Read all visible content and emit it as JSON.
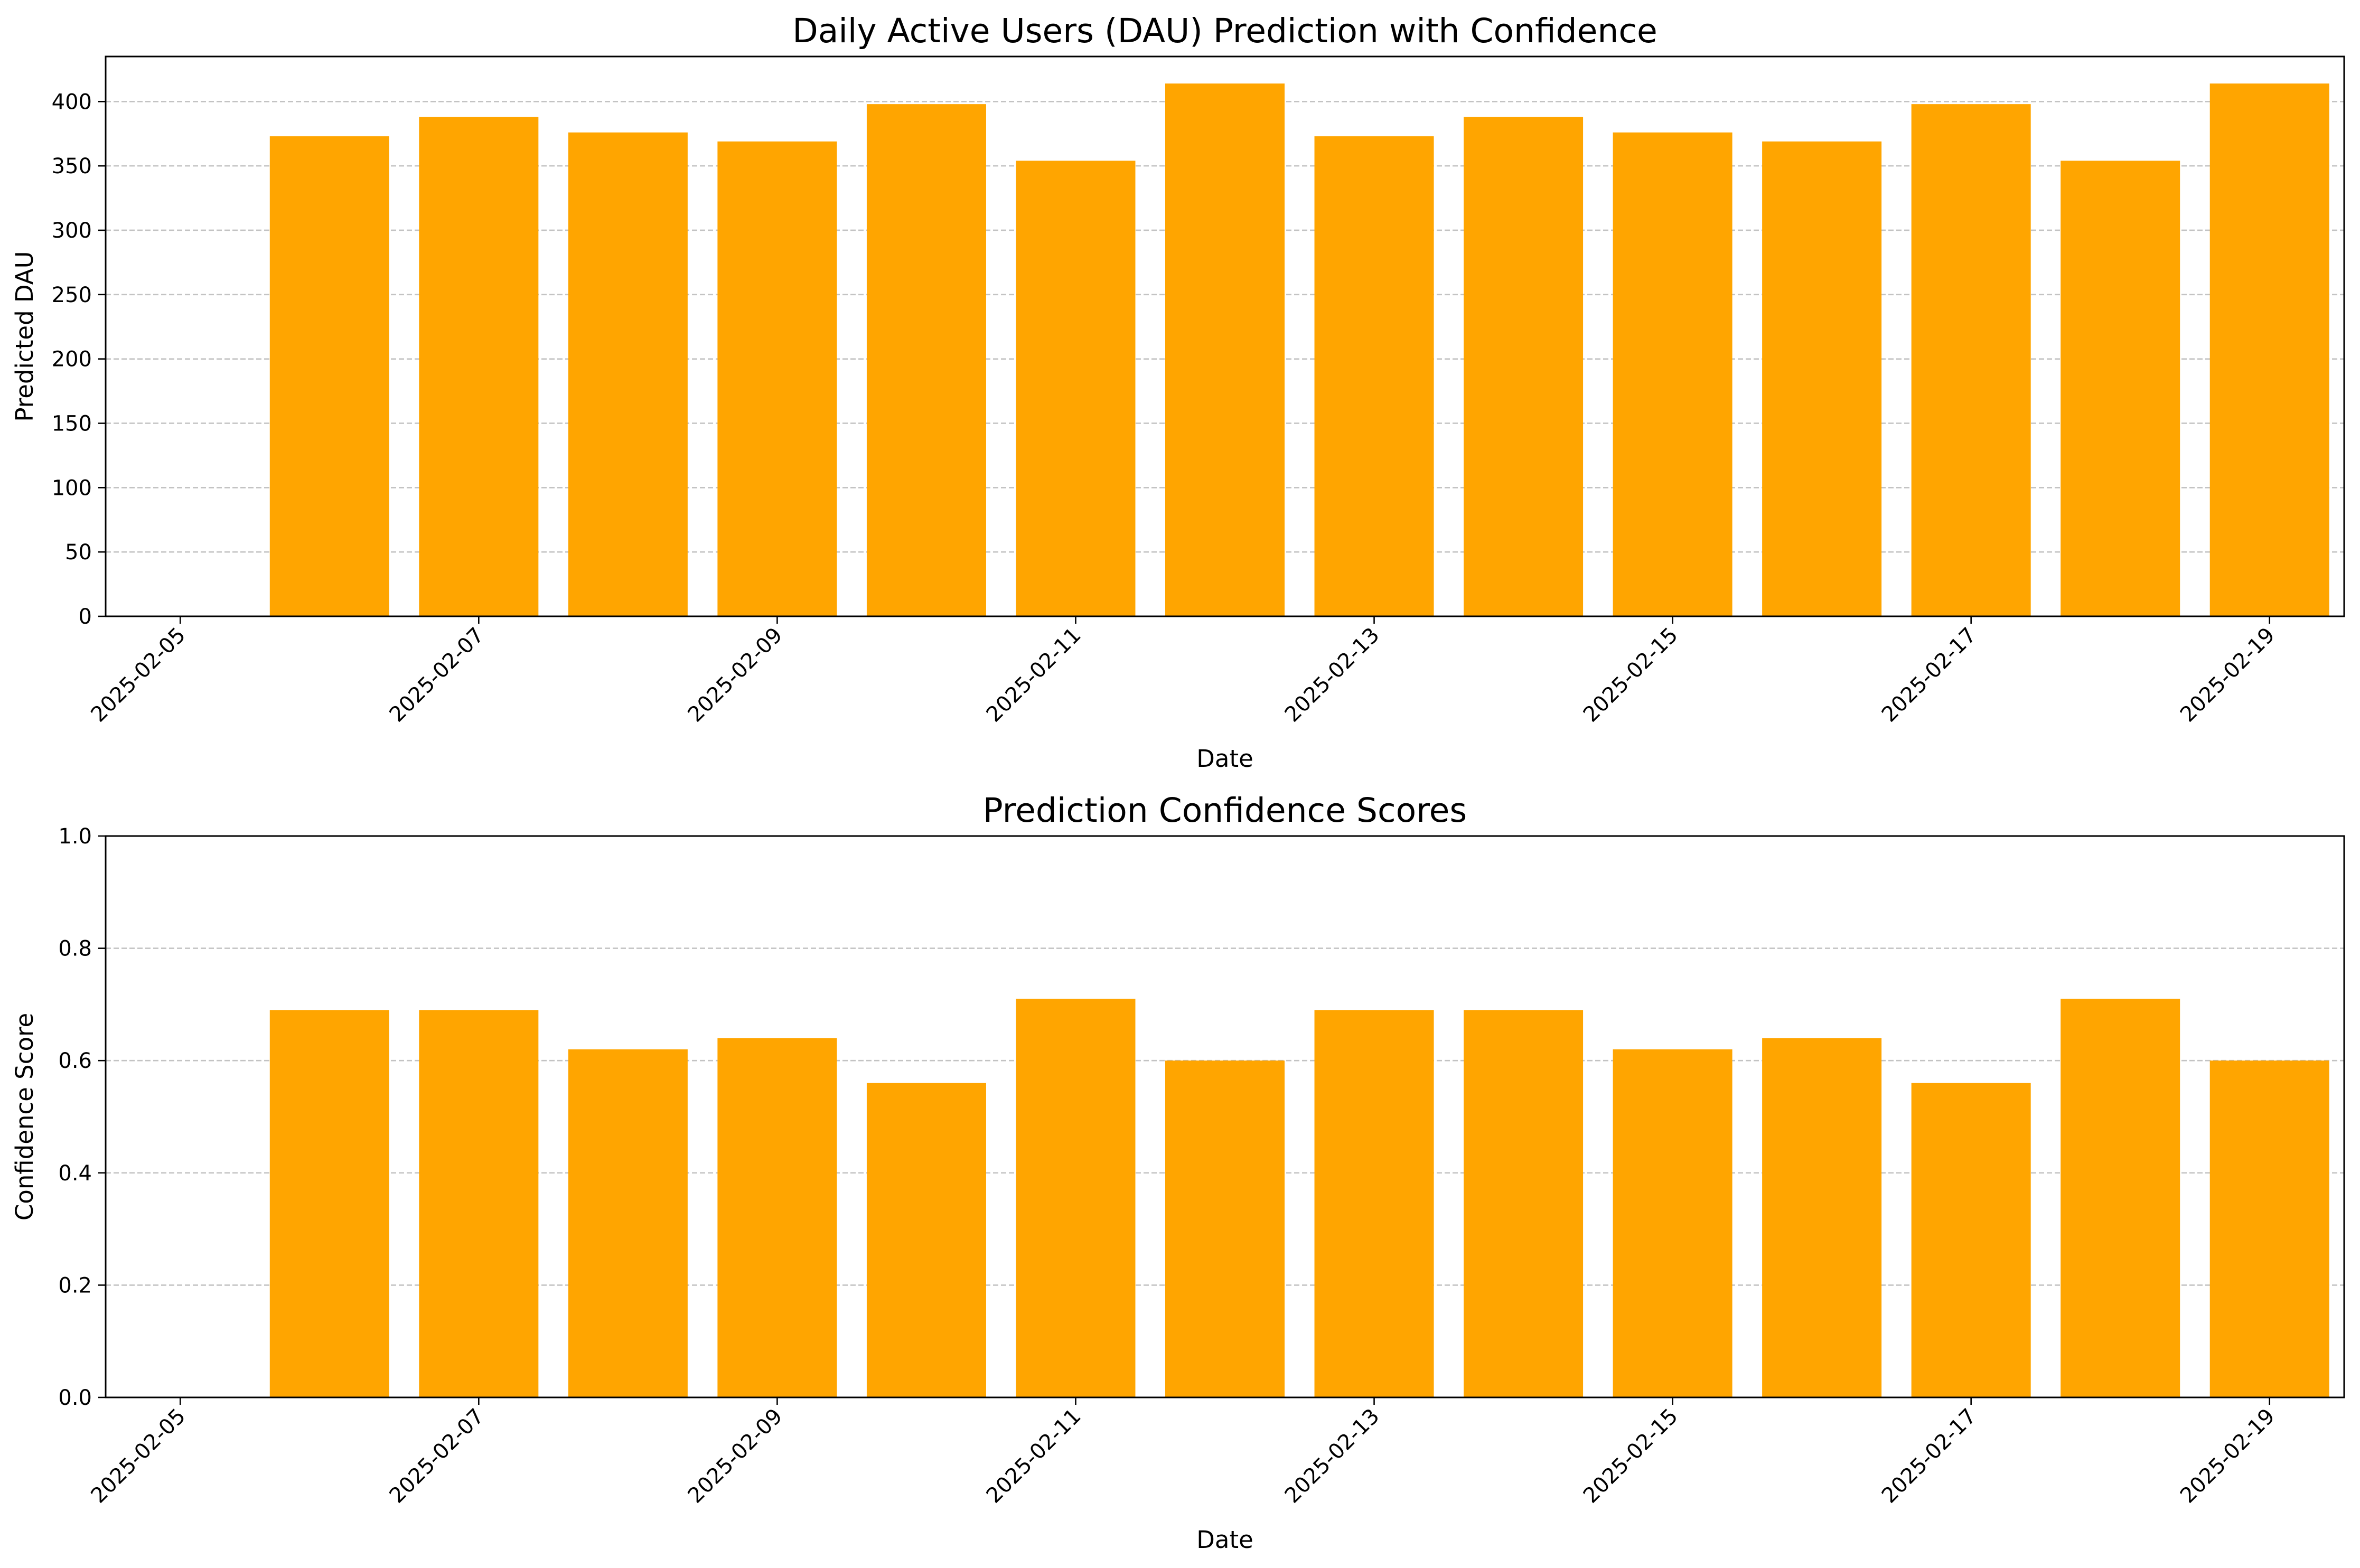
{
  "chart_data": [
    {
      "type": "bar",
      "title": "Daily Active Users (DAU) Prediction with Confidence",
      "xlabel": "Date",
      "ylabel": "Predicted DAU",
      "categories": [
        "2025-02-06",
        "2025-02-07",
        "2025-02-08",
        "2025-02-09",
        "2025-02-10",
        "2025-02-11",
        "2025-02-12",
        "2025-02-13",
        "2025-02-14",
        "2025-02-15",
        "2025-02-16",
        "2025-02-17",
        "2025-02-18",
        "2025-02-19"
      ],
      "values": [
        373,
        388,
        376,
        369,
        398,
        354,
        414,
        373,
        388,
        376,
        369,
        398,
        354,
        414
      ],
      "xlim": [
        "2025-02-04T12:00",
        "2025-02-19T12:00"
      ],
      "ylim": [
        0,
        435
      ],
      "xticks": [
        "2025-02-05",
        "2025-02-07",
        "2025-02-09",
        "2025-02-11",
        "2025-02-13",
        "2025-02-15",
        "2025-02-17",
        "2025-02-19"
      ],
      "yticks": [
        0,
        50,
        100,
        150,
        200,
        250,
        300,
        350,
        400
      ],
      "grid": "y-dashed",
      "color": "#ffa500"
    },
    {
      "type": "bar",
      "title": "Prediction Confidence Scores",
      "xlabel": "Date",
      "ylabel": "Confidence Score",
      "categories": [
        "2025-02-06",
        "2025-02-07",
        "2025-02-08",
        "2025-02-09",
        "2025-02-10",
        "2025-02-11",
        "2025-02-12",
        "2025-02-13",
        "2025-02-14",
        "2025-02-15",
        "2025-02-16",
        "2025-02-17",
        "2025-02-18",
        "2025-02-19"
      ],
      "values": [
        0.69,
        0.69,
        0.62,
        0.64,
        0.56,
        0.71,
        0.6,
        0.69,
        0.69,
        0.62,
        0.64,
        0.56,
        0.71,
        0.6
      ],
      "xlim": [
        "2025-02-04T12:00",
        "2025-02-19T12:00"
      ],
      "ylim": [
        0,
        1.0
      ],
      "xticks": [
        "2025-02-05",
        "2025-02-07",
        "2025-02-09",
        "2025-02-11",
        "2025-02-13",
        "2025-02-15",
        "2025-02-17",
        "2025-02-19"
      ],
      "yticks": [
        "0.0",
        "0.2",
        "0.4",
        "0.6",
        "0.8",
        "1.0"
      ],
      "grid": "y-dashed",
      "color": "#ffa500"
    }
  ]
}
